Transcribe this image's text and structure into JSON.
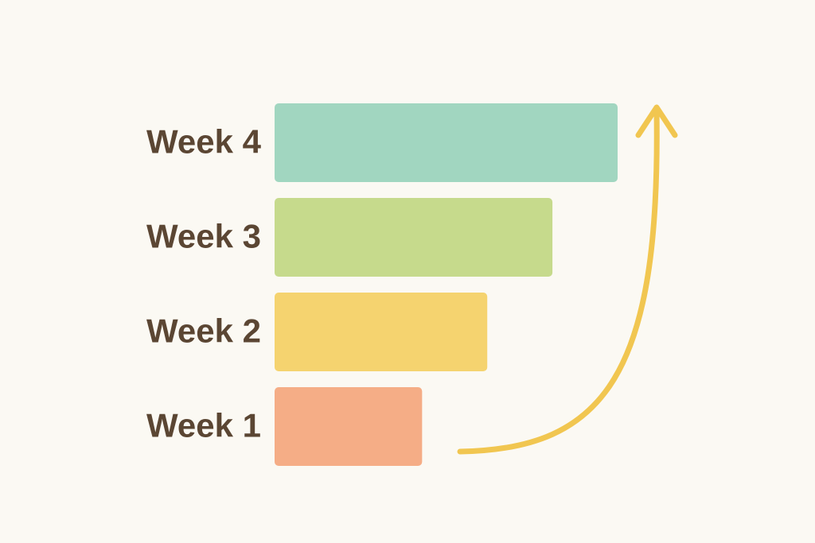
{
  "chart_data": {
    "type": "bar",
    "orientation": "horizontal",
    "categories": [
      "Week 1",
      "Week 2",
      "Week 3",
      "Week 4"
    ],
    "values": [
      43,
      62,
      81,
      100
    ],
    "colors": [
      "#f5ad86",
      "#f5d36f",
      "#c6da8c",
      "#a1d6c0"
    ],
    "xlim": [
      0,
      100
    ]
  }
}
